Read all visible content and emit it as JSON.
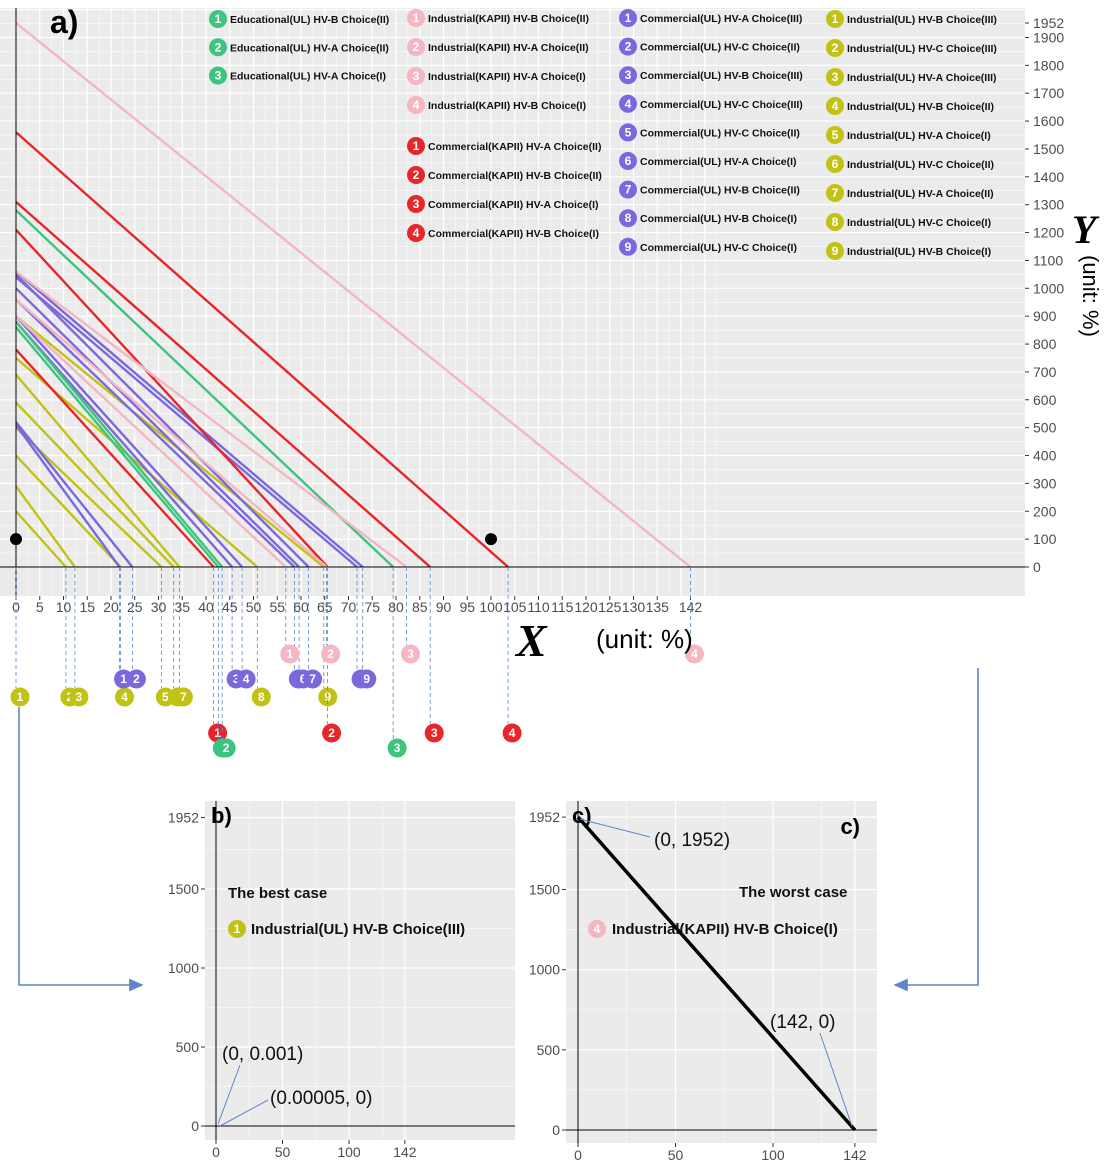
{
  "colors": {
    "Educational": "#3dc47e",
    "IndustrialKAPII": "#f4b6c2",
    "CommercialKAPII": "#e8262a",
    "CommercialUL": "#7b68dd",
    "IndustrialUL": "#c2c215",
    "panel_bg": "#ebebeb",
    "grid": "#ffffff",
    "guide": "#5b86c9"
  },
  "chart_data": [
    {
      "panel": "a)",
      "type": "line",
      "xlabel": "X",
      "xunit": "(unit: %)",
      "ylabel": "Y",
      "yunit": "(unit: %)",
      "xlim": [
        0,
        148
      ],
      "ylim": [
        -95,
        2010
      ],
      "xticks": [
        0,
        5,
        10,
        15,
        20,
        25,
        30,
        35,
        40,
        45,
        50,
        55,
        60,
        65,
        70,
        75,
        80,
        85,
        90,
        95,
        100,
        105,
        110,
        115,
        120,
        125,
        130,
        135,
        142
      ],
      "yticks": [
        0,
        100,
        200,
        300,
        400,
        500,
        600,
        700,
        800,
        900,
        1000,
        1100,
        1200,
        1300,
        1400,
        1500,
        1600,
        1700,
        1800,
        1900,
        1952
      ],
      "points": [
        {
          "x": 0,
          "y": 100
        },
        {
          "x": 100,
          "y": 100
        }
      ],
      "legend_groups": [
        {
          "group": "Educational",
          "items": [
            {
              "n": "1",
              "label": "Educational(UL) HV-B Choice(II)"
            },
            {
              "n": "2",
              "label": "Educational(UL) HV-A Choice(II)"
            },
            {
              "n": "3",
              "label": "Educational(UL) HV-A Choice(I)"
            }
          ]
        },
        {
          "group": "IndustrialKAPII",
          "items": [
            {
              "n": "1",
              "label": "Industrial(KAPII) HV-B Choice(II)"
            },
            {
              "n": "2",
              "label": "Industrial(KAPII) HV-A Choice(II)"
            },
            {
              "n": "3",
              "label": "Industrial(KAPII) HV-A Choice(I)"
            },
            {
              "n": "4",
              "label": "Industrial(KAPII) HV-B Choice(I)"
            }
          ]
        },
        {
          "group": "CommercialKAPII",
          "items": [
            {
              "n": "1",
              "label": "Commercial(KAPII) HV-A Choice(II)"
            },
            {
              "n": "2",
              "label": "Commercial(KAPII) HV-B Choice(II)"
            },
            {
              "n": "3",
              "label": "Commercial(KAPII) HV-A Choice(I)"
            },
            {
              "n": "4",
              "label": "Commercial(KAPII) HV-B Choice(I)"
            }
          ]
        },
        {
          "group": "CommercialUL",
          "items": [
            {
              "n": "1",
              "label": "Commercial(UL) HV-A Choice(III)"
            },
            {
              "n": "2",
              "label": "Commercial(UL) HV-C Choice(II)"
            },
            {
              "n": "3",
              "label": "Commercial(UL) HV-B Choice(III)"
            },
            {
              "n": "4",
              "label": "Commercial(UL) HV-C Choice(III)"
            },
            {
              "n": "5",
              "label": "Commercial(UL) HV-C Choice(II)"
            },
            {
              "n": "6",
              "label": "Commercial(UL) HV-A Choice(I)"
            },
            {
              "n": "7",
              "label": "Commercial(UL) HV-B Choice(II)"
            },
            {
              "n": "8",
              "label": "Commercial(UL) HV-B Choice(I)"
            },
            {
              "n": "9",
              "label": "Commercial(UL) HV-C Choice(I)"
            }
          ]
        },
        {
          "group": "IndustrialUL",
          "items": [
            {
              "n": "1",
              "label": "Industrial(UL) HV-B Choice(III)"
            },
            {
              "n": "2",
              "label": "Industrial(UL) HV-C Choice(III)"
            },
            {
              "n": "3",
              "label": "Industrial(UL) HV-A Choice(III)"
            },
            {
              "n": "4",
              "label": "Industrial(UL) HV-B Choice(II)"
            },
            {
              "n": "5",
              "label": "Industrial(UL) HV-A Choice(I)"
            },
            {
              "n": "6",
              "label": "Industrial(UL) HV-C Choice(II)"
            },
            {
              "n": "7",
              "label": "Industrial(UL) HV-A Choice(II)"
            },
            {
              "n": "8",
              "label": "Industrial(UL) HV-C Choice(I)"
            },
            {
              "n": "9",
              "label": "Industrial(UL) HV-B Choice(I)"
            }
          ]
        }
      ],
      "series": [
        {
          "group": "IndustrialUL",
          "n": "1",
          "x_intercept": 5e-05,
          "y_intercept": 0.001
        },
        {
          "group": "IndustrialUL",
          "n": "2",
          "x_intercept": 10.5,
          "y_intercept": 200
        },
        {
          "group": "IndustrialUL",
          "n": "3",
          "x_intercept": 12.4,
          "y_intercept": 290
        },
        {
          "group": "IndustrialUL",
          "n": "4",
          "x_intercept": 22.0,
          "y_intercept": 400
        },
        {
          "group": "IndustrialUL",
          "n": "5",
          "x_intercept": 30.6,
          "y_intercept": 500
        },
        {
          "group": "IndustrialUL",
          "n": "6",
          "x_intercept": 33.2,
          "y_intercept": 590
        },
        {
          "group": "IndustrialUL",
          "n": "7",
          "x_intercept": 34.4,
          "y_intercept": 690
        },
        {
          "group": "IndustrialUL",
          "n": "8",
          "x_intercept": 50.8,
          "y_intercept": 750
        },
        {
          "group": "IndustrialUL",
          "n": "9",
          "x_intercept": 64.8,
          "y_intercept": 900
        },
        {
          "group": "CommercialUL",
          "n": "1",
          "x_intercept": 21.8,
          "y_intercept": 510
        },
        {
          "group": "CommercialUL",
          "n": "2",
          "x_intercept": 24.5,
          "y_intercept": 520
        },
        {
          "group": "CommercialUL",
          "n": "3",
          "x_intercept": 45.5,
          "y_intercept": 880
        },
        {
          "group": "CommercialUL",
          "n": "4",
          "x_intercept": 47.6,
          "y_intercept": 900
        },
        {
          "group": "CommercialUL",
          "n": "5",
          "x_intercept": 58.6,
          "y_intercept": 960
        },
        {
          "group": "CommercialUL",
          "n": "6",
          "x_intercept": 59.6,
          "y_intercept": 1000
        },
        {
          "group": "CommercialUL",
          "n": "7",
          "x_intercept": 61.6,
          "y_intercept": 1050
        },
        {
          "group": "CommercialUL",
          "n": "8",
          "x_intercept": 71.8,
          "y_intercept": 1040
        },
        {
          "group": "CommercialUL",
          "n": "9",
          "x_intercept": 73.0,
          "y_intercept": 1060
        },
        {
          "group": "CommercialKAPII",
          "n": "1",
          "x_intercept": 41.6,
          "y_intercept": 780
        },
        {
          "group": "CommercialKAPII",
          "n": "2",
          "x_intercept": 65.6,
          "y_intercept": 1210
        },
        {
          "group": "CommercialKAPII",
          "n": "3",
          "x_intercept": 87.2,
          "y_intercept": 1310
        },
        {
          "group": "CommercialKAPII",
          "n": "4",
          "x_intercept": 103.6,
          "y_intercept": 1560
        },
        {
          "group": "Educational",
          "n": "1",
          "x_intercept": 42.6,
          "y_intercept": 860
        },
        {
          "group": "Educational",
          "n": "2",
          "x_intercept": 43.4,
          "y_intercept": 880
        },
        {
          "group": "Educational",
          "n": "3",
          "x_intercept": 79.4,
          "y_intercept": 1280
        },
        {
          "group": "IndustrialKAPII",
          "n": "1",
          "x_intercept": 56.8,
          "y_intercept": 900
        },
        {
          "group": "IndustrialKAPII",
          "n": "2",
          "x_intercept": 65.4,
          "y_intercept": 960
        },
        {
          "group": "IndustrialKAPII",
          "n": "3",
          "x_intercept": 82.2,
          "y_intercept": 1060
        },
        {
          "group": "IndustrialKAPII",
          "n": "4",
          "x_intercept": 142,
          "y_intercept": 1952
        }
      ]
    },
    {
      "panel": "b)",
      "type": "line",
      "xticks": [
        0,
        50,
        100,
        142
      ],
      "yticks": [
        0,
        500,
        1000,
        1500,
        1952
      ],
      "case_label": "The best case",
      "series": [
        {
          "group": "IndustrialUL",
          "n": "1",
          "name": "Industrial(UL) HV-B Choice(III)",
          "x": [
            0,
            5e-05
          ],
          "y": [
            0.001,
            0
          ]
        }
      ],
      "annotations": [
        "(0, 0.001)",
        "(0.00005, 0)"
      ]
    },
    {
      "panel": "c)",
      "type": "line",
      "xticks": [
        0,
        50,
        100,
        142
      ],
      "yticks": [
        0,
        500,
        1000,
        1500,
        1952
      ],
      "case_label": "The worst case",
      "series": [
        {
          "group": "IndustrialKAPII",
          "n": "4",
          "name": "Industrial(KAPII) HV-B Choice(I)",
          "x": [
            0,
            142
          ],
          "y": [
            1952,
            0
          ]
        }
      ],
      "annotations": [
        "(0, 1952)",
        "(142, 0)"
      ]
    }
  ]
}
